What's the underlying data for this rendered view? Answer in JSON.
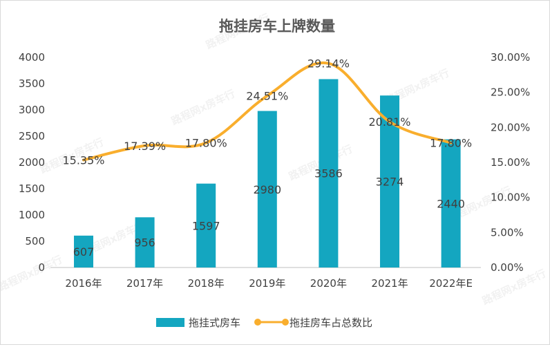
{
  "chart_data": {
    "type": "bar+line",
    "title": "拖挂房车上牌数量",
    "categories": [
      "2016年",
      "2017年",
      "2018年",
      "2019年",
      "2020年",
      "2021年",
      "2022年E"
    ],
    "series": [
      {
        "name": "拖挂式房车",
        "type": "bar",
        "axis": "left",
        "values": [
          607,
          956,
          1597,
          2980,
          3586,
          3274,
          2440
        ],
        "labels": [
          "607",
          "956",
          "1597",
          "2980",
          "3586",
          "3274",
          "2440"
        ],
        "color": "#14A6C0"
      },
      {
        "name": "拖挂房车占总数比",
        "type": "line",
        "axis": "right",
        "smooth": true,
        "values": [
          15.35,
          17.39,
          17.8,
          24.51,
          29.14,
          20.81,
          17.8
        ],
        "labels": [
          "15.35%",
          "17.39%",
          "17.80%",
          "24.51%",
          "29.14%",
          "20.81%",
          "17.80%"
        ],
        "color": "#F9AE2D"
      }
    ],
    "y_left": {
      "range": [
        0,
        4000
      ],
      "ticks": [
        "0",
        "500",
        "1000",
        "1500",
        "2000",
        "2500",
        "3000",
        "3500",
        "4000"
      ]
    },
    "y_right": {
      "range": [
        0,
        30
      ],
      "ticks": [
        "0.00%",
        "5.00%",
        "10.00%",
        "15.00%",
        "20.00%",
        "25.00%",
        "30.00%"
      ]
    },
    "grid": false,
    "legend": "bottom"
  },
  "watermark": "路程网x房车行"
}
